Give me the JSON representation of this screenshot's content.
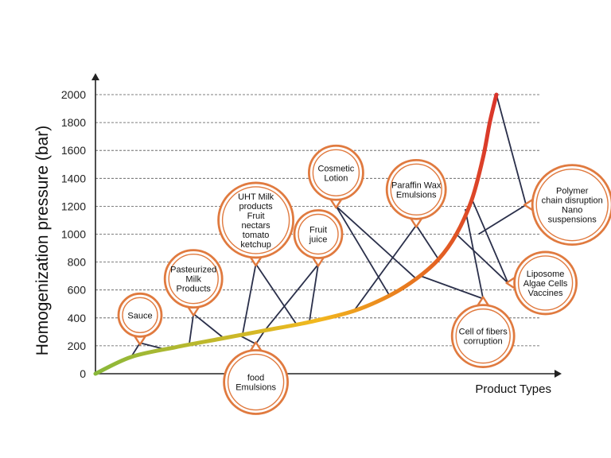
{
  "chart_data": {
    "type": "line",
    "title": "",
    "ylabel": "Homogenization pressure (bar)",
    "xlabel": "Product Types",
    "ylim": [
      0,
      2000
    ],
    "yticks": [
      0,
      200,
      400,
      600,
      800,
      1000,
      1200,
      1400,
      1600,
      1800,
      2000
    ],
    "grid": true,
    "curve": {
      "x": [
        0,
        0.08,
        0.18,
        0.28,
        0.38,
        0.48,
        0.58,
        0.66,
        0.72,
        0.77,
        0.81,
        0.845,
        0.87,
        0.885,
        0.9
      ],
      "y": [
        0,
        120,
        190,
        250,
        310,
        370,
        450,
        560,
        680,
        820,
        1000,
        1250,
        1550,
        1800,
        2000
      ],
      "color_start": "#8ab83a",
      "color_mid": "#f2b81e",
      "color_end": "#d9342b"
    },
    "bubbles": [
      {
        "id": "sauce",
        "lines": [
          "Sauce"
        ],
        "x": 0.1,
        "y": 420,
        "r": 27,
        "pointer": "bottom",
        "targets": [
          [
            0.08,
            120
          ],
          [
            0.15,
            180
          ]
        ]
      },
      {
        "id": "pasteurized",
        "lines": [
          "Pasteurized",
          "Milk",
          "Products"
        ],
        "x": 0.22,
        "y": 680,
        "r": 36,
        "pointer": "bottom",
        "targets": [
          [
            0.21,
            200
          ],
          [
            0.29,
            250
          ]
        ]
      },
      {
        "id": "uht",
        "lines": [
          "UHT Milk",
          "products",
          "Fruit",
          "nectars",
          "tomato",
          "ketchup"
        ],
        "x": 0.36,
        "y": 1100,
        "r": 47,
        "pointer": "bottom",
        "targets": [
          [
            0.33,
            280
          ],
          [
            0.45,
            360
          ]
        ]
      },
      {
        "id": "fruit-juice",
        "lines": [
          "Fruit",
          "juice"
        ],
        "x": 0.5,
        "y": 1000,
        "r": 30,
        "pointer": "bottom",
        "targets": [
          [
            0.38,
            310
          ],
          [
            0.48,
            370
          ]
        ]
      },
      {
        "id": "cosmetic",
        "lines": [
          "Cosmetic",
          "Lotion"
        ],
        "x": 0.54,
        "y": 1440,
        "r": 34,
        "pointer": "bottom",
        "targets": [
          [
            0.66,
            560
          ],
          [
            0.72,
            680
          ]
        ]
      },
      {
        "id": "paraffin",
        "lines": [
          "Paraffin Wax",
          "Emulsions"
        ],
        "x": 0.72,
        "y": 1320,
        "r": 37,
        "pointer": "bottom",
        "targets": [
          [
            0.58,
            450
          ],
          [
            0.77,
            820
          ]
        ]
      },
      {
        "id": "polymer",
        "lines": [
          "Polymer",
          "chain disruption",
          "Nano",
          "suspensions"
        ],
        "x": 1.07,
        "y": 1210,
        "r": 50,
        "pointer": "left",
        "targets": [
          [
            0.86,
            1000
          ],
          [
            0.9,
            2000
          ]
        ]
      },
      {
        "id": "liposome",
        "lines": [
          "Liposome",
          "Algae Cells",
          "Vaccines"
        ],
        "x": 1.01,
        "y": 650,
        "r": 39,
        "pointer": "left",
        "targets": [
          [
            0.81,
            1000
          ],
          [
            0.845,
            1250
          ]
        ]
      },
      {
        "id": "cell-fibers",
        "lines": [
          "Cell of fibers",
          "corruption"
        ],
        "x": 0.87,
        "y": 270,
        "r": 39,
        "pointer": "top",
        "targets": [
          [
            0.73,
            700
          ],
          [
            0.83,
            1180
          ]
        ]
      },
      {
        "id": "food-emulsions",
        "lines": [
          "food",
          "Emulsions"
        ],
        "x": 0.36,
        "y": -60,
        "r": 40,
        "pointer": "top",
        "targets": [
          [
            0.32,
            280
          ],
          [
            0.38,
            310
          ]
        ]
      }
    ]
  },
  "colors": {
    "bubble_stroke": "#e07a3f",
    "leader": "#2a2f4a",
    "axis": "#222222"
  }
}
